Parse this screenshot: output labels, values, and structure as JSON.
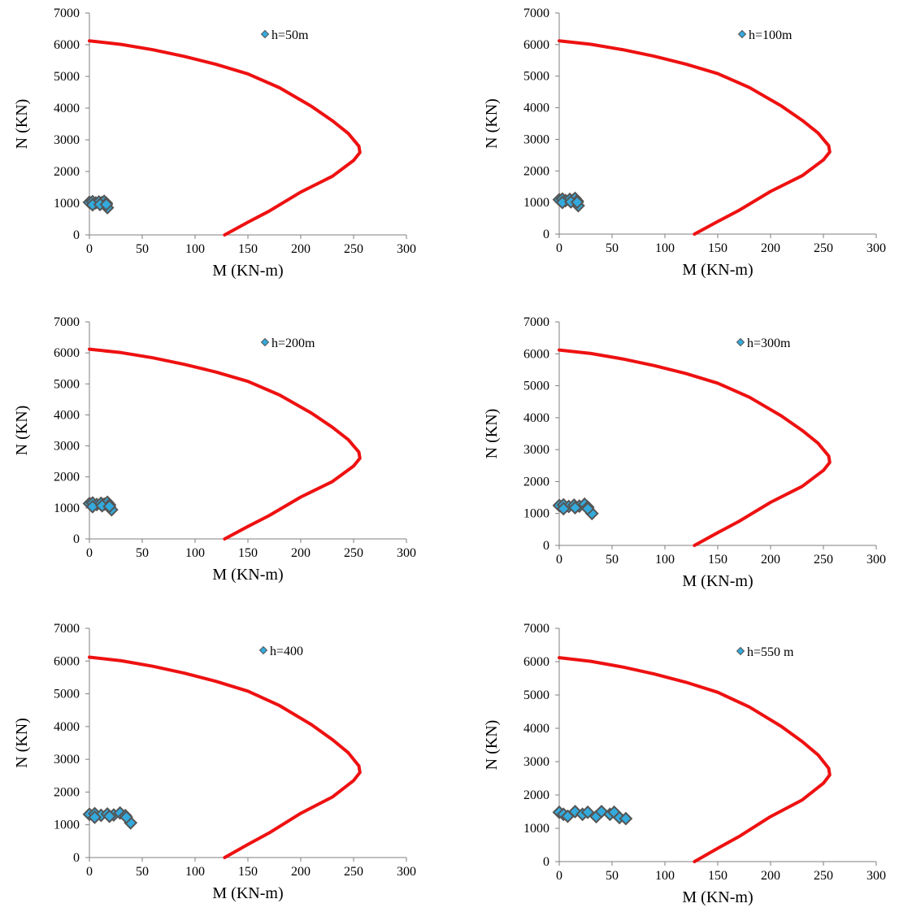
{
  "colors": {
    "interaction_curve": "#ee1111",
    "marker_fill": "#33aadd",
    "marker_stroke": "#555555",
    "axis": "#7f7f7f"
  },
  "chart_data": [
    {
      "type": "scatter",
      "xlabel": "M (KN-m)",
      "ylabel": "N (KN)",
      "xlim": [
        0,
        300
      ],
      "ylim": [
        0,
        7000
      ],
      "xticks": [
        "0",
        "50",
        "100",
        "150",
        "200",
        "250",
        "300"
      ],
      "yticks": [
        "0",
        "1000",
        "2000",
        "3000",
        "4000",
        "5000",
        "6000",
        "7000"
      ],
      "legend_position": "top-center",
      "series": [
        {
          "name": "h=50m",
          "marker": "diamond",
          "x": [
            0,
            3,
            6,
            9,
            12,
            14,
            16,
            17,
            3,
            10,
            16
          ],
          "y": [
            1030,
            1050,
            1010,
            1040,
            1020,
            1060,
            1000,
            860,
            950,
            960,
            960
          ]
        },
        {
          "name": "",
          "marker": "line",
          "x": [
            0,
            30,
            60,
            90,
            120,
            150,
            180,
            210,
            230,
            245,
            255,
            256,
            250,
            230,
            200,
            170,
            150,
            128
          ],
          "y": [
            6120,
            6010,
            5840,
            5630,
            5380,
            5080,
            4640,
            4060,
            3600,
            3200,
            2800,
            2600,
            2350,
            1850,
            1350,
            750,
            400,
            0
          ]
        }
      ]
    },
    {
      "type": "scatter",
      "xlabel": "M (KN-m)",
      "ylabel": "N (KN)",
      "xlim": [
        0,
        300
      ],
      "ylim": [
        0,
        7000
      ],
      "xticks": [
        "0",
        "50",
        "100",
        "150",
        "200",
        "250",
        "300"
      ],
      "yticks": [
        "0",
        "1000",
        "2000",
        "3000",
        "4000",
        "5000",
        "6000",
        "7000"
      ],
      "legend_position": "top-center",
      "series": [
        {
          "name": "h=100m",
          "marker": "diamond",
          "x": [
            0,
            3,
            6,
            10,
            13,
            15,
            17,
            18,
            3,
            11,
            17
          ],
          "y": [
            1090,
            1110,
            1060,
            1100,
            1070,
            1130,
            1050,
            900,
            1000,
            1020,
            1010
          ]
        },
        {
          "name": "",
          "marker": "line",
          "x": [
            0,
            30,
            60,
            90,
            120,
            150,
            180,
            210,
            230,
            245,
            255,
            256,
            250,
            230,
            200,
            170,
            150,
            128
          ],
          "y": [
            6120,
            6010,
            5840,
            5630,
            5380,
            5080,
            4640,
            4060,
            3600,
            3200,
            2800,
            2600,
            2350,
            1850,
            1350,
            750,
            400,
            0
          ]
        }
      ]
    },
    {
      "type": "scatter",
      "xlabel": "M (KN-m)",
      "ylabel": "N (KN)",
      "xlim": [
        0,
        300
      ],
      "ylim": [
        0,
        7000
      ],
      "xticks": [
        "0",
        "50",
        "100",
        "150",
        "200",
        "250",
        "300"
      ],
      "yticks": [
        "0",
        "1000",
        "2000",
        "3000",
        "4000",
        "5000",
        "6000",
        "7000"
      ],
      "legend_position": "top-center",
      "series": [
        {
          "name": "h=200m",
          "marker": "diamond",
          "x": [
            0,
            3,
            7,
            11,
            14,
            17,
            19,
            21,
            3,
            12,
            19
          ],
          "y": [
            1140,
            1160,
            1110,
            1150,
            1120,
            1180,
            1100,
            940,
            1040,
            1070,
            1050
          ]
        },
        {
          "name": "",
          "marker": "line",
          "x": [
            0,
            30,
            60,
            90,
            120,
            150,
            180,
            210,
            230,
            245,
            255,
            256,
            250,
            230,
            200,
            170,
            150,
            128
          ],
          "y": [
            6120,
            6010,
            5840,
            5630,
            5380,
            5080,
            4640,
            4060,
            3600,
            3200,
            2800,
            2600,
            2350,
            1850,
            1350,
            750,
            400,
            0
          ]
        }
      ]
    },
    {
      "type": "scatter",
      "xlabel": "M (KN-m)",
      "ylabel": "N (KN)",
      "xlim": [
        0,
        300
      ],
      "ylim": [
        0,
        7000
      ],
      "xticks": [
        "0",
        "50",
        "100",
        "150",
        "200",
        "250",
        "300"
      ],
      "yticks": [
        "0",
        "1000",
        "2000",
        "3000",
        "4000",
        "5000",
        "6000",
        "7000"
      ],
      "legend_position": "top-center",
      "series": [
        {
          "name": "h=300m",
          "marker": "diamond",
          "x": [
            0,
            4,
            9,
            14,
            19,
            24,
            27,
            31,
            4,
            15,
            27
          ],
          "y": [
            1250,
            1270,
            1220,
            1260,
            1230,
            1290,
            1200,
            1000,
            1150,
            1180,
            1150
          ]
        },
        {
          "name": "",
          "marker": "line",
          "x": [
            0,
            30,
            60,
            90,
            120,
            150,
            180,
            210,
            230,
            245,
            255,
            256,
            250,
            230,
            200,
            170,
            150,
            128
          ],
          "y": [
            6120,
            6010,
            5840,
            5630,
            5380,
            5080,
            4640,
            4060,
            3600,
            3200,
            2800,
            2600,
            2350,
            1850,
            1350,
            750,
            400,
            0
          ]
        }
      ]
    },
    {
      "type": "scatter",
      "xlabel": "M (KN-m)",
      "ylabel": "N (KN)",
      "xlim": [
        0,
        300
      ],
      "ylim": [
        0,
        7000
      ],
      "xticks": [
        "0",
        "50",
        "100",
        "150",
        "200",
        "250",
        "300"
      ],
      "yticks": [
        "0",
        "1000",
        "2000",
        "3000",
        "4000",
        "5000",
        "6000",
        "7000"
      ],
      "legend_position": "top-center",
      "series": [
        {
          "name": "h=400",
          "marker": "diamond",
          "x": [
            0,
            5,
            11,
            17,
            23,
            29,
            34,
            39,
            5,
            19,
            35
          ],
          "y": [
            1320,
            1340,
            1290,
            1330,
            1300,
            1360,
            1280,
            1060,
            1230,
            1260,
            1230
          ]
        },
        {
          "name": "",
          "marker": "line",
          "x": [
            0,
            30,
            60,
            90,
            120,
            150,
            180,
            210,
            230,
            245,
            255,
            256,
            250,
            230,
            200,
            170,
            150,
            128
          ],
          "y": [
            6120,
            6010,
            5840,
            5630,
            5380,
            5080,
            4640,
            4060,
            3600,
            3200,
            2800,
            2600,
            2350,
            1850,
            1350,
            750,
            400,
            0
          ]
        }
      ]
    },
    {
      "type": "scatter",
      "xlabel": "M (KN-m)",
      "ylabel": "N (KN)",
      "xlim": [
        0,
        300
      ],
      "ylim": [
        0,
        7000
      ],
      "xticks": [
        "0",
        "50",
        "100",
        "150",
        "200",
        "250",
        "300"
      ],
      "yticks": [
        "0",
        "1000",
        "2000",
        "3000",
        "4000",
        "5000",
        "6000",
        "7000"
      ],
      "legend_position": "top-center",
      "series": [
        {
          "name": "h=550 m",
          "marker": "diamond",
          "x": [
            0,
            4,
            8,
            15,
            22,
            27,
            35,
            40,
            48,
            52,
            57,
            63
          ],
          "y": [
            1480,
            1420,
            1360,
            1500,
            1420,
            1480,
            1350,
            1500,
            1420,
            1480,
            1320,
            1290
          ]
        },
        {
          "name": "",
          "marker": "line",
          "x": [
            0,
            30,
            60,
            90,
            120,
            150,
            180,
            210,
            230,
            245,
            255,
            256,
            250,
            230,
            200,
            170,
            150,
            128
          ],
          "y": [
            6120,
            6010,
            5840,
            5630,
            5380,
            5080,
            4640,
            4060,
            3600,
            3200,
            2800,
            2600,
            2350,
            1850,
            1350,
            750,
            400,
            0
          ]
        }
      ]
    }
  ]
}
